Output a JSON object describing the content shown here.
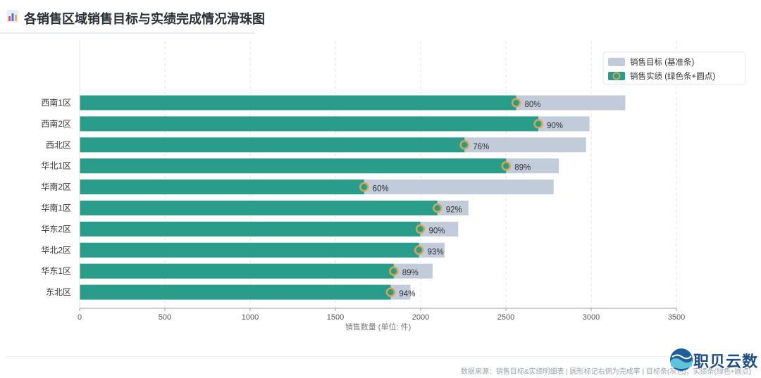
{
  "page": {
    "title": "各销售区域销售目标与实绩完成情况滑珠图",
    "footer_note": "数据来源：销售目标&实绩明细表 | 圆形标记右侧为完成率 | 目标条(灰色)，实绩条(绿色+圆点)",
    "brand_name": "职贝云数",
    "title_icon": "bar-chart-icon"
  },
  "chart_data": {
    "type": "bar",
    "orientation": "horizontal",
    "title": "",
    "xlabel": "销售数量 (单位: 件)",
    "ylabel": "",
    "xlim": [
      0,
      3500
    ],
    "xticks": [
      "0",
      "500",
      "1000",
      "1500",
      "2000",
      "2500",
      "3000",
      "3500"
    ],
    "grid": "vertical dashed",
    "legend_position": "top-right",
    "categories": [
      "西南1区",
      "西南2区",
      "西北区",
      "华北1区",
      "华南2区",
      "华南1区",
      "华东2区",
      "华北2区",
      "华东1区",
      "东北区"
    ],
    "series": [
      {
        "name": "销售目标 (基准条)",
        "color": "#c1cbd9",
        "values": [
          3200,
          2990,
          2970,
          2810,
          2780,
          2280,
          2220,
          2140,
          2070,
          1940
        ]
      },
      {
        "name": "销售实绩 (绿色条+圆点)",
        "color": "#2a9c8a",
        "values": [
          2560,
          2690,
          2257,
          2501,
          1668,
          2098,
          1998,
          1990,
          1842,
          1824
        ]
      }
    ],
    "data_labels": [
      "80%",
      "90%",
      "76%",
      "89%",
      "60%",
      "92%",
      "90%",
      "93%",
      "89%",
      "94%"
    ],
    "marker_color": "#d6a552"
  }
}
